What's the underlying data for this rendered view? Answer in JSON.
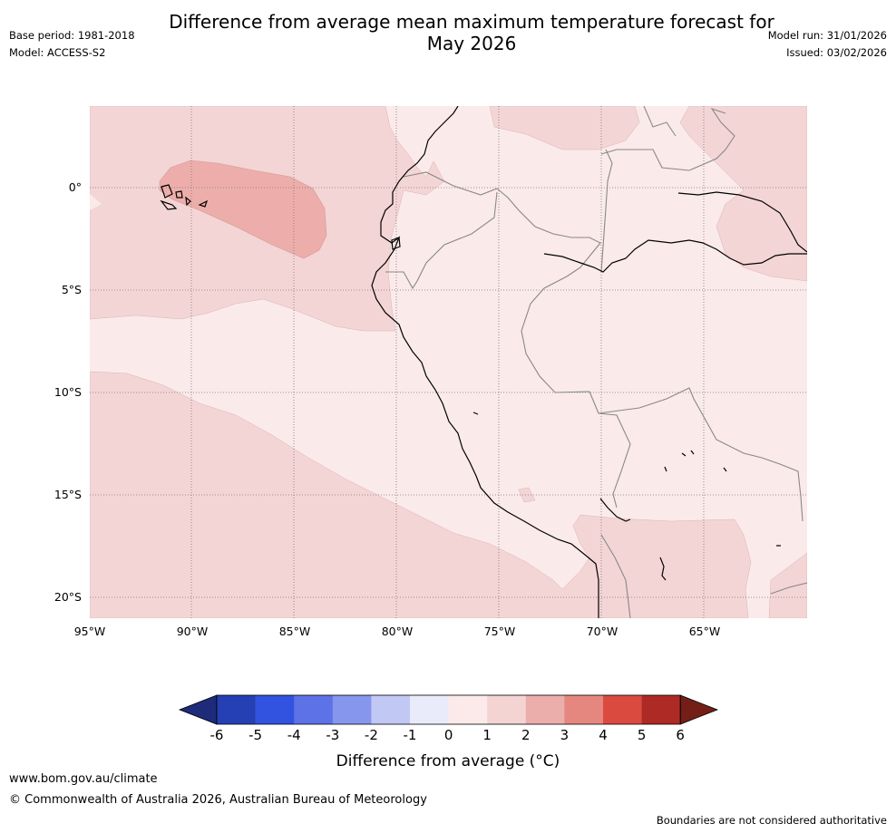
{
  "header": {
    "title_line1": "Difference from average mean maximum temperature forecast for",
    "title_line2": "May 2026",
    "base_period": "Base period: 1981-2018",
    "model": "Model: ACCESS-S2",
    "model_run": "Model run: 31/01/2026",
    "issued": "Issued: 03/02/2026"
  },
  "map": {
    "lat_labels": [
      "0°",
      "5°S",
      "10°S",
      "15°S",
      "20°S"
    ],
    "lon_labels": [
      "95°W",
      "90°W",
      "85°W",
      "80°W",
      "75°W",
      "70°W",
      "65°W"
    ],
    "colors": {
      "ocean_0_1": "#fbeaea",
      "anom_1_2": "#f4d5d5",
      "anom_2_3": "#edaeab",
      "graticule": "#777777",
      "border": "#888888",
      "coast": "#000000"
    }
  },
  "colorbar": {
    "tick_labels": [
      "-6",
      "-5",
      "-4",
      "-3",
      "-2",
      "-1",
      "0",
      "1",
      "2",
      "3",
      "4",
      "5",
      "6"
    ],
    "colors": [
      "#1d2b7a",
      "#2540b4",
      "#3252e0",
      "#5d72e6",
      "#8696ec",
      "#c1c8f4",
      "#e9ebfb",
      "#fceaea",
      "#f4d3d3",
      "#ecaeab",
      "#e6877f",
      "#da4a3f",
      "#ae2a24",
      "#731f17"
    ],
    "label": "Difference from average (°C)"
  },
  "footer": {
    "url": "www.bom.gov.au/climate",
    "copyright": "© Commonwealth of Australia 2026, Australian Bureau of Meteorology",
    "disclaimer": "Boundaries are not considered authoritative"
  }
}
